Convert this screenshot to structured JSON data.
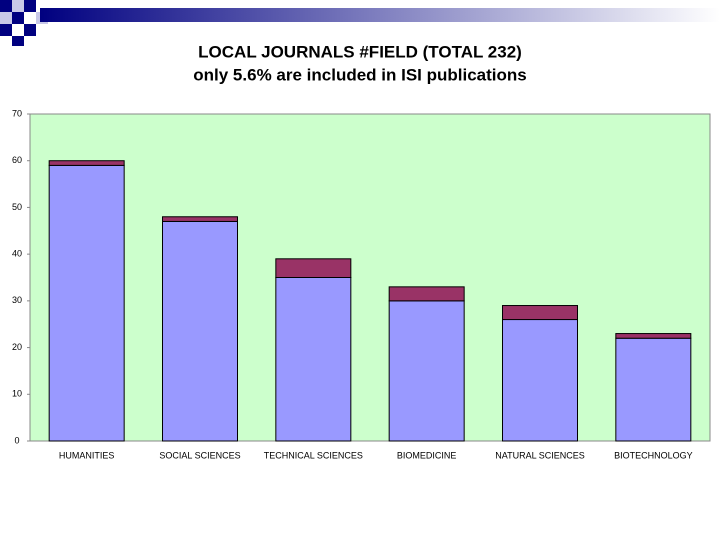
{
  "chart_data": {
    "type": "stacked_bar",
    "title": "LOCAL JOURNALS #FIELD (TOTAL 232)",
    "subtitle": "only 5.6% are included in ISI publications",
    "categories": [
      "HUMANITIES",
      "SOCIAL SCIENCES",
      "TECHNICAL SCIENCES",
      "BIOMEDICINE",
      "NATURAL SCIENCES",
      "BIOTECHNOLOGY"
    ],
    "series": [
      {
        "color": "#9999ff",
        "values": [
          59,
          47,
          35,
          30,
          26,
          22
        ]
      },
      {
        "color": "#993366",
        "values": [
          1,
          1,
          4,
          3,
          3,
          1
        ]
      }
    ],
    "ylim": [
      0,
      70
    ],
    "yticks": [
      0,
      10,
      20,
      30,
      40,
      50,
      60,
      70
    ],
    "background": "#ccffcc"
  }
}
